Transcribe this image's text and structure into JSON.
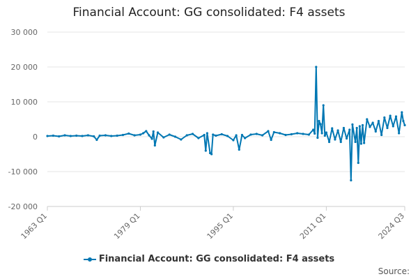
{
  "chart_data": {
    "type": "line",
    "title": "Financial Account: GG consolidated: F4 assets",
    "xlabel": "",
    "ylabel": "",
    "y_ticks": [
      30000,
      20000,
      10000,
      0,
      -10000,
      -20000
    ],
    "y_tick_labels": [
      "30 000",
      "20 000",
      "10 000",
      "0",
      "-10 000",
      "-20 000"
    ],
    "ylim": [
      -20000,
      30000
    ],
    "x_ticks": [
      "1963 Q1",
      "1979 Q1",
      "1995 Q1",
      "2011 Q1",
      "2024 Q3"
    ],
    "x_range": [
      "1963 Q1",
      "2024 Q3"
    ],
    "grid": true,
    "legend_position": "bottom",
    "series": [
      {
        "name": "Financial Account: GG consolidated: F4 assets",
        "color": "#0077b3",
        "points": [
          [
            "1963 Q1",
            200
          ],
          [
            "1964 Q1",
            300
          ],
          [
            "1965 Q1",
            100
          ],
          [
            "1966 Q1",
            400
          ],
          [
            "1967 Q1",
            200
          ],
          [
            "1968 Q1",
            300
          ],
          [
            "1969 Q1",
            200
          ],
          [
            "1970 Q1",
            400
          ],
          [
            "1971 Q1",
            100
          ],
          [
            "1971 Q3",
            -900
          ],
          [
            "1972 Q1",
            300
          ],
          [
            "1973 Q1",
            400
          ],
          [
            "1974 Q1",
            200
          ],
          [
            "1975 Q1",
            300
          ],
          [
            "1976 Q1",
            500
          ],
          [
            "1977 Q1",
            900
          ],
          [
            "1978 Q1",
            400
          ],
          [
            "1979 Q1",
            600
          ],
          [
            "1979 Q3",
            1000
          ],
          [
            "1980 Q1",
            1600
          ],
          [
            "1980 Q3",
            400
          ],
          [
            "1981 Q1",
            -600
          ],
          [
            "1981 Q2",
            1500
          ],
          [
            "1981 Q3",
            -2500
          ],
          [
            "1982 Q1",
            1200
          ],
          [
            "1983 Q1",
            -200
          ],
          [
            "1984 Q1",
            600
          ],
          [
            "1985 Q1",
            0
          ],
          [
            "1986 Q1",
            -800
          ],
          [
            "1987 Q1",
            400
          ],
          [
            "1988 Q1",
            800
          ],
          [
            "1989 Q1",
            -400
          ],
          [
            "1990 Q1",
            500
          ],
          [
            "1990 Q2",
            -4000
          ],
          [
            "1990 Q3",
            1000
          ],
          [
            "1991 Q1",
            -4700
          ],
          [
            "1991 Q2",
            -5000
          ],
          [
            "1991 Q3",
            600
          ],
          [
            "1992 Q1",
            300
          ],
          [
            "1993 Q1",
            700
          ],
          [
            "1994 Q1",
            200
          ],
          [
            "1995 Q1",
            -1000
          ],
          [
            "1995 Q3",
            400
          ],
          [
            "1996 Q1",
            -3700
          ],
          [
            "1996 Q3",
            500
          ],
          [
            "1997 Q1",
            -400
          ],
          [
            "1998 Q1",
            600
          ],
          [
            "1999 Q1",
            800
          ],
          [
            "2000 Q1",
            400
          ],
          [
            "2001 Q1",
            1600
          ],
          [
            "2001 Q3",
            -900
          ],
          [
            "2002 Q1",
            1300
          ],
          [
            "2003 Q1",
            1000
          ],
          [
            "2004 Q1",
            500
          ],
          [
            "2005 Q1",
            700
          ],
          [
            "2006 Q1",
            1000
          ],
          [
            "2007 Q1",
            800
          ],
          [
            "2008 Q1",
            600
          ],
          [
            "2008 Q4",
            2000
          ],
          [
            "2009 Q1",
            900
          ],
          [
            "2009 Q2",
            20000
          ],
          [
            "2009 Q3",
            -300
          ],
          [
            "2009 Q4",
            4500
          ],
          [
            "2010 Q1",
            3600
          ],
          [
            "2010 Q2",
            1000
          ],
          [
            "2010 Q3",
            9000
          ],
          [
            "2010 Q4",
            300
          ],
          [
            "2011 Q1",
            1200
          ],
          [
            "2011 Q3",
            -1500
          ],
          [
            "2012 Q1",
            2400
          ],
          [
            "2012 Q3",
            -800
          ],
          [
            "2013 Q1",
            1800
          ],
          [
            "2013 Q3",
            -1500
          ],
          [
            "2014 Q1",
            2500
          ],
          [
            "2014 Q3",
            -500
          ],
          [
            "2015 Q1",
            2000
          ],
          [
            "2015 Q2",
            -12500
          ],
          [
            "2015 Q3",
            3500
          ],
          [
            "2016 Q1",
            -1500
          ],
          [
            "2016 Q2",
            2500
          ],
          [
            "2016 Q3",
            -7500
          ],
          [
            "2016 Q4",
            3000
          ],
          [
            "2017 Q1",
            -2000
          ],
          [
            "2017 Q2",
            3300
          ],
          [
            "2017 Q3",
            -1800
          ],
          [
            "2018 Q1",
            5000
          ],
          [
            "2018 Q3",
            2800
          ],
          [
            "2019 Q1",
            4000
          ],
          [
            "2019 Q3",
            1500
          ],
          [
            "2020 Q1",
            4500
          ],
          [
            "2020 Q3",
            500
          ],
          [
            "2021 Q1",
            5500
          ],
          [
            "2021 Q3",
            2500
          ],
          [
            "2022 Q1",
            6000
          ],
          [
            "2022 Q3",
            3000
          ],
          [
            "2023 Q1",
            5800
          ],
          [
            "2023 Q3",
            1000
          ],
          [
            "2024 Q1",
            7000
          ],
          [
            "2024 Q2",
            4500
          ],
          [
            "2024 Q3",
            3300
          ]
        ]
      }
    ],
    "source_label": "Source:"
  }
}
